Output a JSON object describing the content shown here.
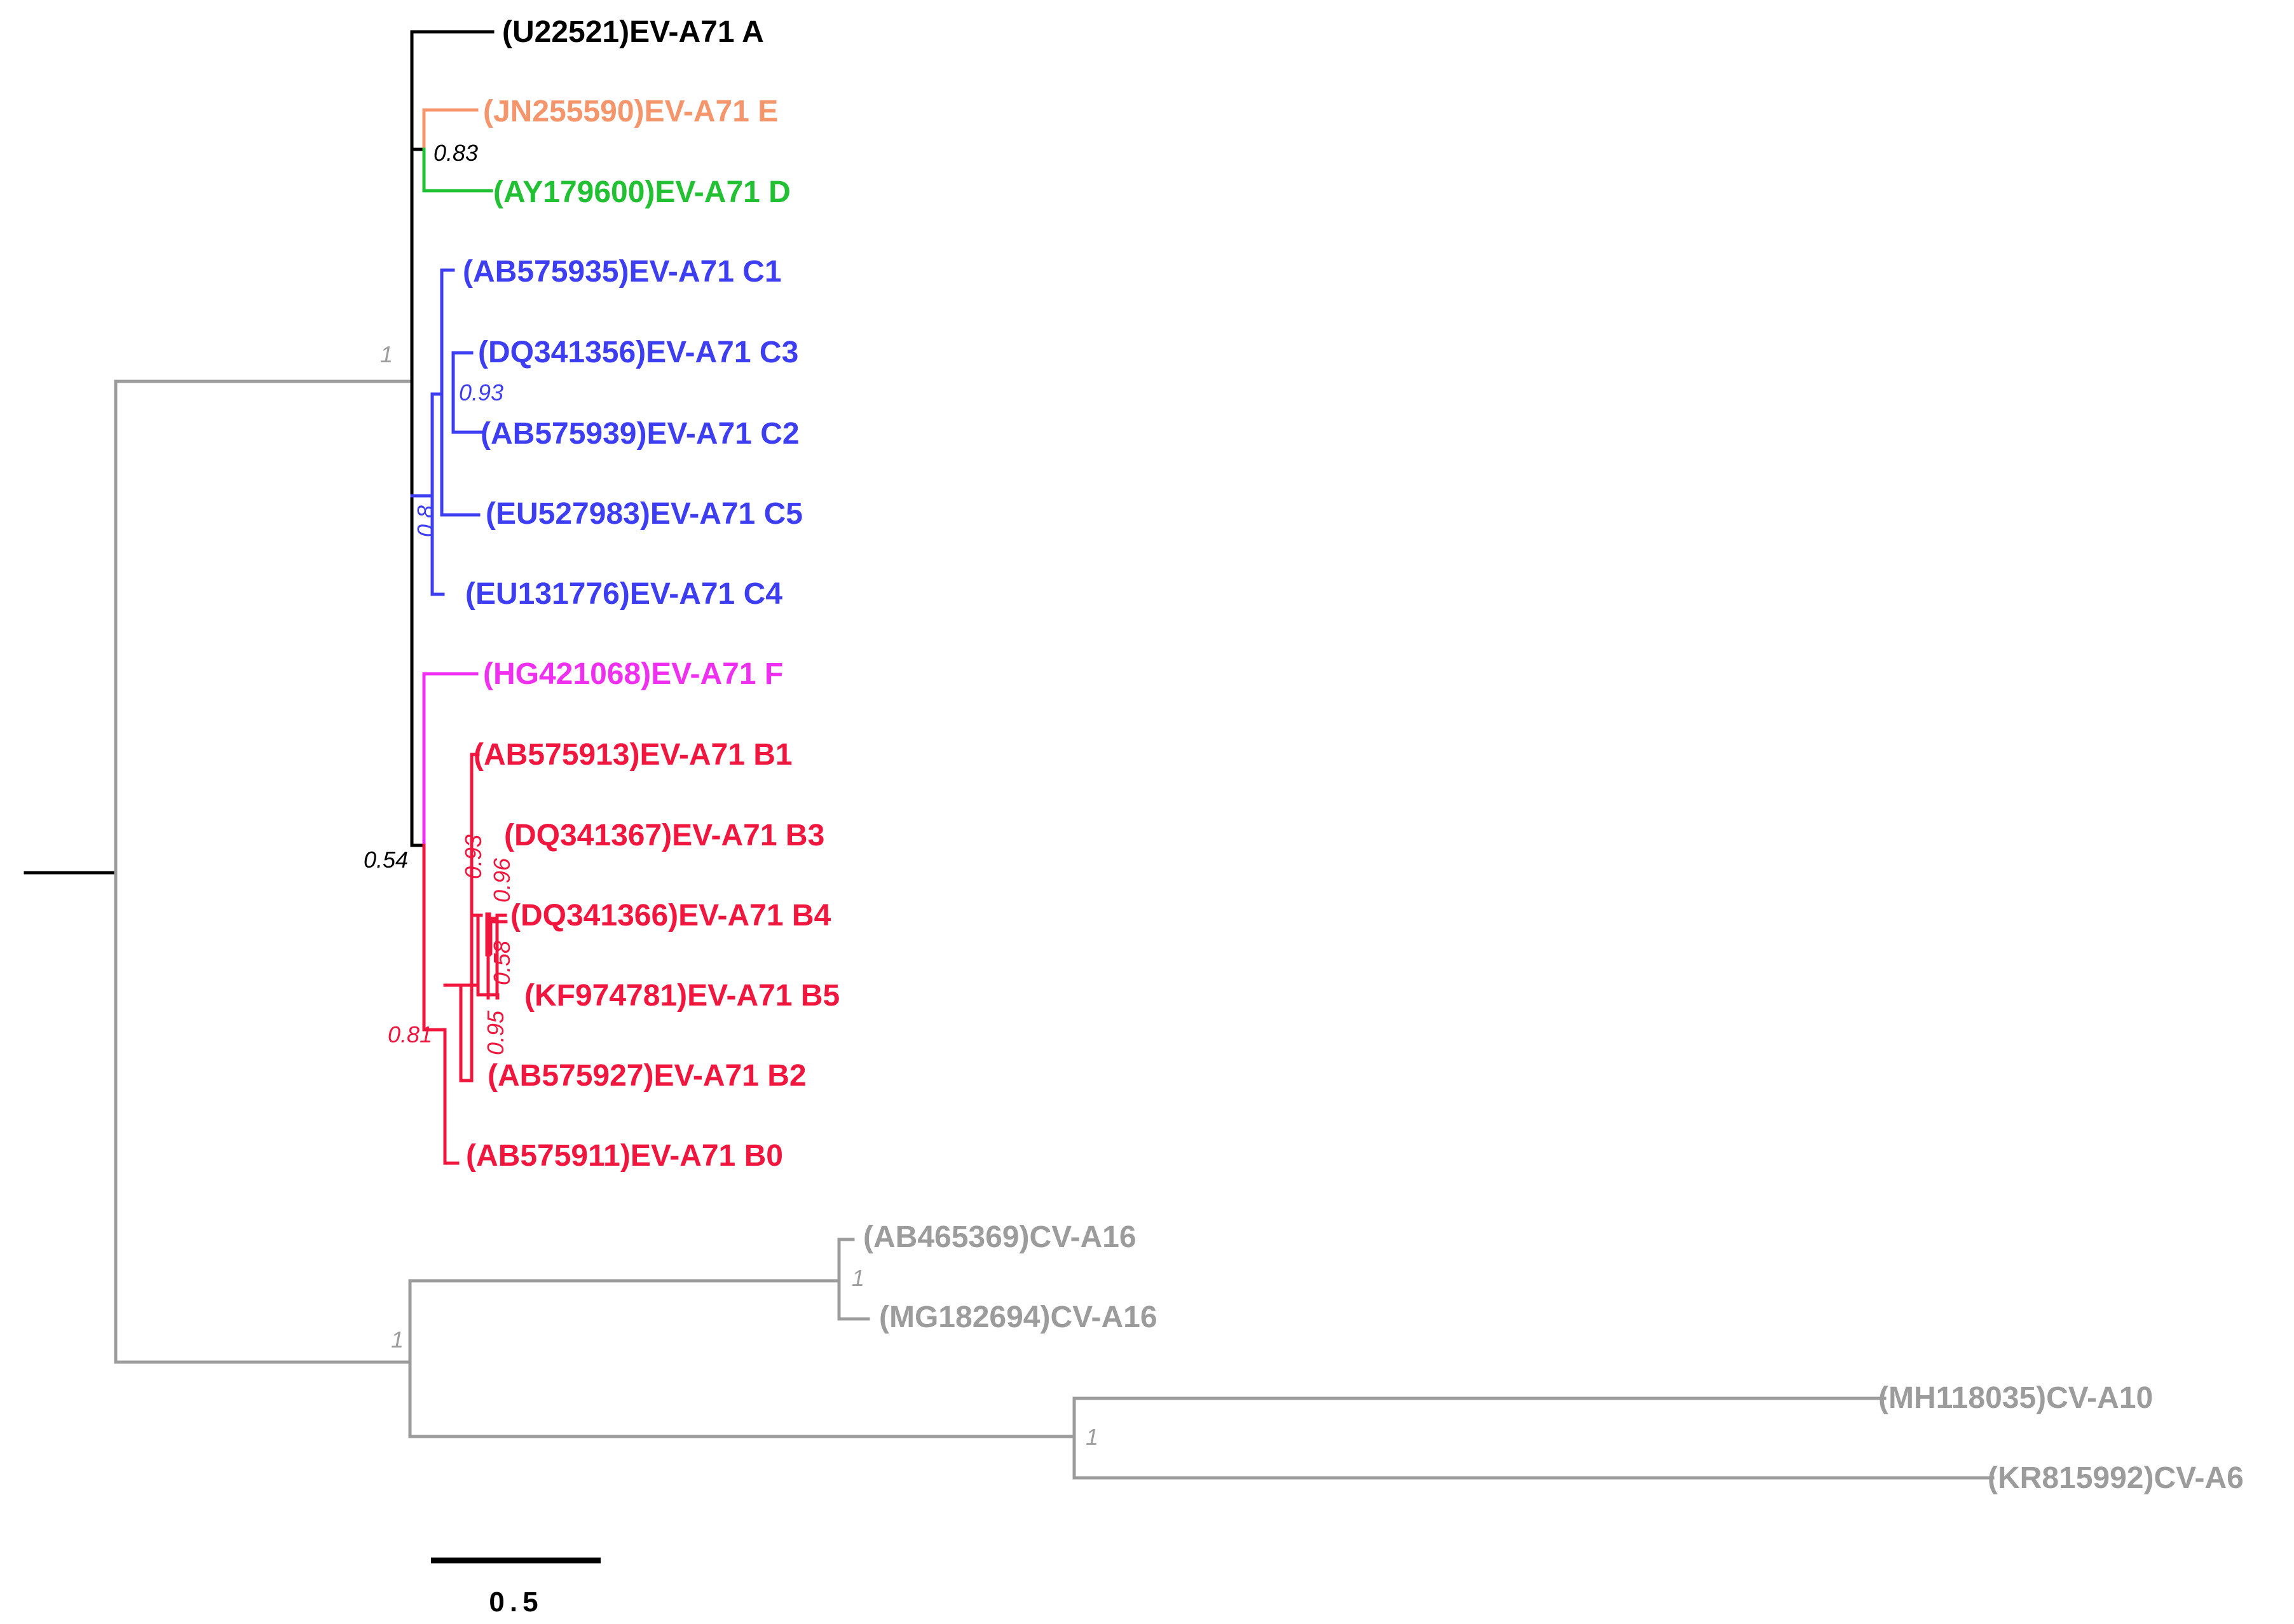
{
  "colors": {
    "black": "#000000",
    "orange": "#f4956b",
    "green": "#22c033",
    "blue": "#3d3df2",
    "magenta": "#f030f0",
    "red": "#f0163e",
    "grey": "#9c9c9c"
  },
  "leaves": [
    {
      "label": "(U22521)EV-A71 A",
      "color": "black"
    },
    {
      "label": "(JN255590)EV-A71 E",
      "color": "orange"
    },
    {
      "label": "(AY179600)EV-A71 D",
      "color": "green"
    },
    {
      "label": "(AB575935)EV-A71 C1",
      "color": "blue"
    },
    {
      "label": "(DQ341356)EV-A71 C3",
      "color": "blue"
    },
    {
      "label": "(AB575939)EV-A71 C2",
      "color": "blue"
    },
    {
      "label": "(EU527983)EV-A71 C5",
      "color": "blue"
    },
    {
      "label": "(EU131776)EV-A71 C4",
      "color": "blue"
    },
    {
      "label": "(HG421068)EV-A71 F",
      "color": "magenta"
    },
    {
      "label": "(AB575913)EV-A71 B1",
      "color": "red"
    },
    {
      "label": "(DQ341367)EV-A71 B3",
      "color": "red"
    },
    {
      "label": "(DQ341366)EV-A71 B4",
      "color": "red"
    },
    {
      "label": "(KF974781)EV-A71 B5",
      "color": "red"
    },
    {
      "label": "(AB575927)EV-A71 B2",
      "color": "red"
    },
    {
      "label": "(AB575911)EV-A71 B0",
      "color": "red"
    },
    {
      "label": "(AB465369)CV-A16",
      "color": "grey"
    },
    {
      "label": "(MG182694)CV-A16",
      "color": "grey"
    },
    {
      "label": "(MH118035)CV-A10",
      "color": "grey"
    },
    {
      "label": "(KR815992)CV-A6",
      "color": "grey"
    }
  ],
  "support_values": [
    {
      "value": "1",
      "color": "grey"
    },
    {
      "value": "0.83",
      "color": "black"
    },
    {
      "value": "0.93",
      "color": "blue"
    },
    {
      "value": "0.8",
      "color": "blue"
    },
    {
      "value": "0.54",
      "color": "black"
    },
    {
      "value": "0.93",
      "color": "red"
    },
    {
      "value": "0.96",
      "color": "red"
    },
    {
      "value": "0.58",
      "color": "red"
    },
    {
      "value": "0.95",
      "color": "red"
    },
    {
      "value": "0.81",
      "color": "red"
    },
    {
      "value": "1",
      "color": "grey"
    },
    {
      "value": "1",
      "color": "grey"
    },
    {
      "value": "1",
      "color": "grey"
    }
  ],
  "scale_bar": {
    "label": "0.5"
  }
}
